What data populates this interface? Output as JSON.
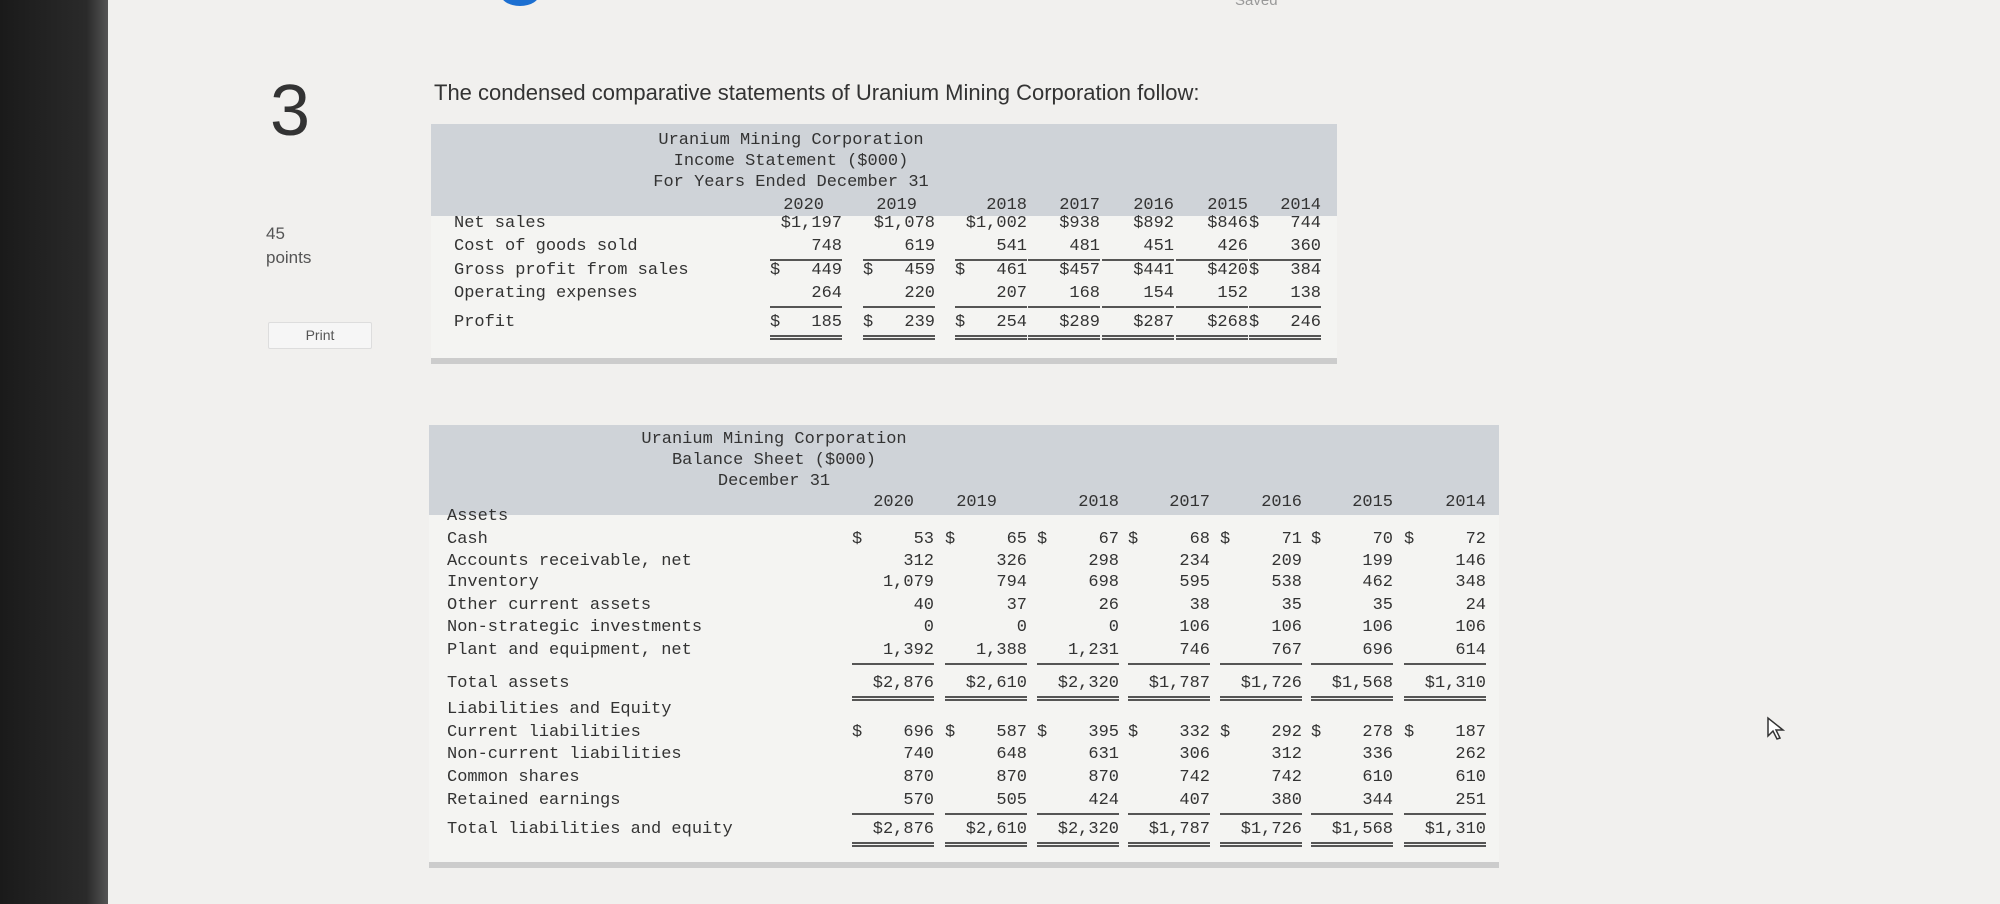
{
  "header": {
    "saved_label": "Saved"
  },
  "question": {
    "number": "3",
    "points_value": "45",
    "points_label": "points",
    "print_label": "Print",
    "text": "The condensed comparative statements of Uranium Mining Corporation follow:"
  },
  "income_statement": {
    "title_lines": [
      "Uranium Mining Corporation",
      "Income Statement ($000)",
      "For Years Ended December 31"
    ],
    "years": [
      "2020",
      "2019",
      "2018",
      "2017",
      "2016",
      "2015",
      "2014"
    ],
    "rows": [
      {
        "label": "Net sales",
        "values": [
          "$1,197",
          "$1,078",
          "$1,002",
          "$938",
          "$892",
          "$846",
          "$ 744"
        ],
        "rule": ""
      },
      {
        "label": "Cost of goods sold",
        "values": [
          "748",
          "619",
          "541",
          "481",
          "451",
          "426",
          "360"
        ],
        "rule": "single"
      },
      {
        "label": "Gross profit from sales",
        "values": [
          "$ 449",
          "$ 459",
          "$ 461",
          "$457",
          "$441",
          "$420",
          "$ 384"
        ],
        "rule": ""
      },
      {
        "label": "Operating expenses",
        "values": [
          "264",
          "220",
          "207",
          "168",
          "154",
          "152",
          "138"
        ],
        "rule": "single"
      },
      {
        "label": "Profit",
        "values": [
          "$ 185",
          "$ 239",
          "$ 254",
          "$289",
          "$287",
          "$268",
          "$ 246"
        ],
        "rule": "double"
      }
    ]
  },
  "balance_sheet": {
    "title_lines": [
      "Uranium Mining Corporation",
      "Balance Sheet ($000)",
      "December 31"
    ],
    "years": [
      "2020",
      "2019",
      "2018",
      "2017",
      "2016",
      "2015",
      "2014"
    ],
    "rows": [
      {
        "label": "Assets",
        "values": [],
        "rule": ""
      },
      {
        "label": "Cash",
        "values": [
          "$ 53",
          "$ 65",
          "$ 67",
          "$ 68",
          "$ 71",
          "$ 70",
          "$ 72"
        ],
        "rule": ""
      },
      {
        "label": "Accounts receivable, net",
        "values": [
          "312",
          "326",
          "298",
          "234",
          "209",
          "199",
          "146"
        ],
        "rule": ""
      },
      {
        "label": "Inventory",
        "values": [
          "1,079",
          "794",
          "698",
          "595",
          "538",
          "462",
          "348"
        ],
        "rule": ""
      },
      {
        "label": "Other current assets",
        "values": [
          "40",
          "37",
          "26",
          "38",
          "35",
          "35",
          "24"
        ],
        "rule": ""
      },
      {
        "label": "Non-strategic investments",
        "values": [
          "0",
          "0",
          "0",
          "106",
          "106",
          "106",
          "106"
        ],
        "rule": ""
      },
      {
        "label": "Plant and equipment, net",
        "values": [
          "1,392",
          "1,388",
          "1,231",
          "746",
          "767",
          "696",
          "614"
        ],
        "rule": "single"
      },
      {
        "label": "Total assets",
        "values": [
          "$2,876",
          "$2,610",
          "$2,320",
          "$1,787",
          "$1,726",
          "$1,568",
          "$1,310"
        ],
        "rule": "double"
      },
      {
        "label": "Liabilities and Equity",
        "values": [],
        "rule": ""
      },
      {
        "label": "Current liabilities",
        "values": [
          "$ 696",
          "$ 587",
          "$ 395",
          "$ 332",
          "$ 292",
          "$ 278",
          "$ 187"
        ],
        "rule": ""
      },
      {
        "label": "Non-current liabilities",
        "values": [
          "740",
          "648",
          "631",
          "306",
          "312",
          "336",
          "262"
        ],
        "rule": ""
      },
      {
        "label": "Common shares",
        "values": [
          "870",
          "870",
          "870",
          "742",
          "742",
          "610",
          "610"
        ],
        "rule": ""
      },
      {
        "label": "Retained earnings",
        "values": [
          "570",
          "505",
          "424",
          "407",
          "380",
          "344",
          "251"
        ],
        "rule": "single"
      },
      {
        "label": "Total liabilities and equity",
        "values": [
          "$2,876",
          "$2,610",
          "$2,320",
          "$1,787",
          "$1,726",
          "$1,568",
          "$1,310"
        ],
        "rule": "double"
      }
    ]
  },
  "icons": {
    "cursor": "mouse-pointer-icon"
  }
}
